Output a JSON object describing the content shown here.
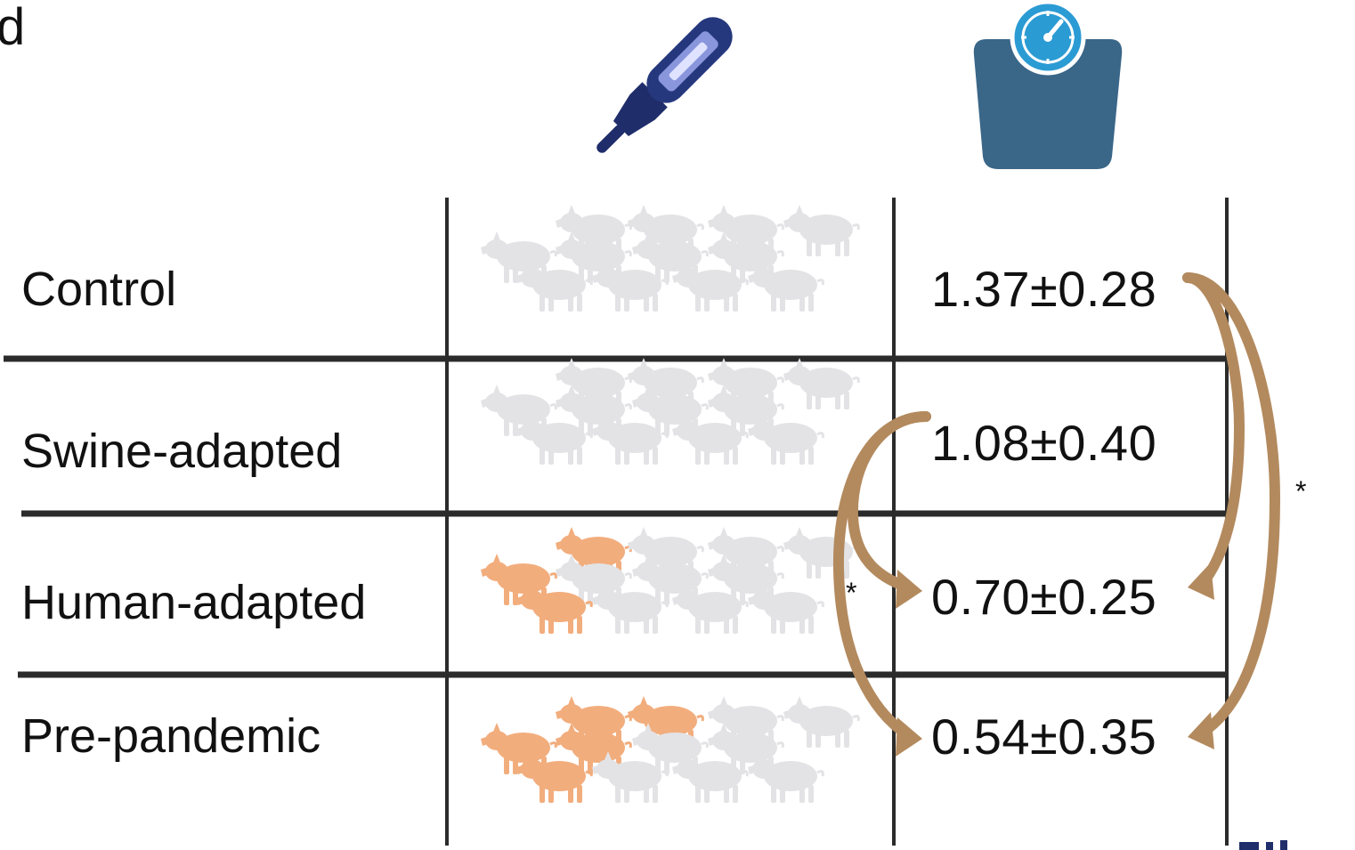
{
  "panel_letter": "d",
  "header_icons": [
    "thermometer-icon",
    "weighing-scale-icon"
  ],
  "rows": [
    {
      "label": "Control",
      "value": "1.37±0.28",
      "colored_pigs": 0,
      "total_pigs": 12
    },
    {
      "label": "Swine-adapted",
      "value": "1.08±0.40",
      "colored_pigs": 0,
      "total_pigs": 12
    },
    {
      "label": "Human-adapted",
      "value": "0.70±0.25",
      "colored_pigs": 3,
      "total_pigs": 12
    },
    {
      "label": "Pre-pandemic",
      "value": "0.54±0.35",
      "colored_pigs": 5,
      "total_pigs": 12
    }
  ],
  "annotations": {
    "inner_star": "*",
    "outer_star": "*"
  },
  "colors": {
    "grid_line": "#2b2b2b",
    "pig_grey": "#e3e3e6",
    "pig_blue": "#6fa3d8",
    "pig_orange": "#f2ad7d",
    "arrow": "#b38a5e",
    "thermometer_body": "#1f2d6b",
    "thermometer_display": "#8a96dc",
    "scale_body": "#3a6688",
    "scale_dial": "#2b9bd4"
  }
}
